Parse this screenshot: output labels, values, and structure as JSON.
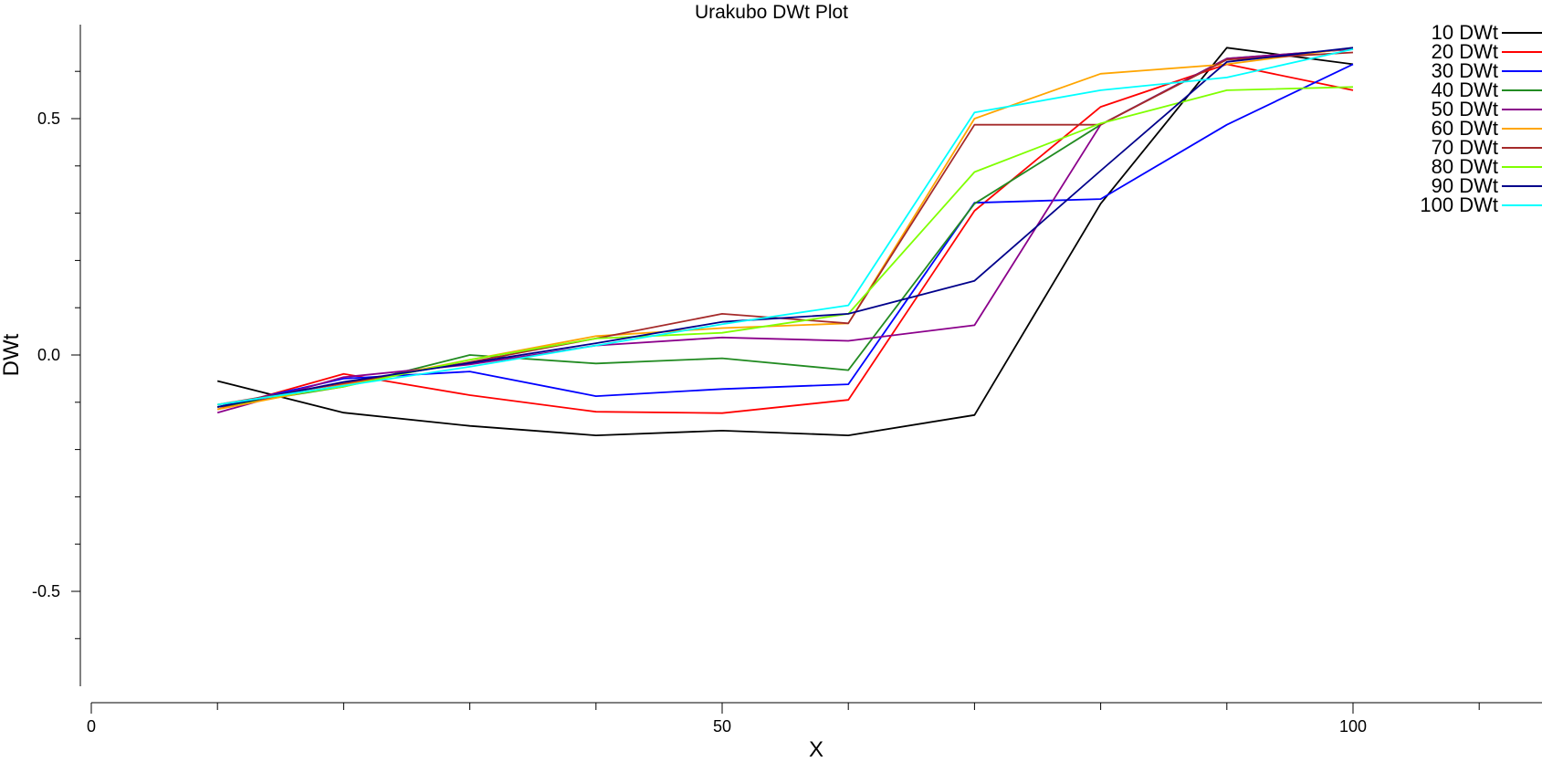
{
  "chart_data": {
    "type": "line",
    "title": "Urakubo DWt Plot",
    "xlabel": "X",
    "ylabel": "DWt",
    "xlim": [
      0,
      115
    ],
    "ylim": [
      -0.7,
      0.7
    ],
    "xticks": [
      {
        "value": 0,
        "label": "0"
      },
      {
        "value": 50,
        "label": "50"
      },
      {
        "value": 100,
        "label": "100"
      }
    ],
    "yticks": [
      {
        "value": 0.5,
        "label": "0.5"
      },
      {
        "value": 0,
        "label": "0.0"
      },
      {
        "value": -0.5,
        "label": "-0.5"
      }
    ],
    "legend_position": "top-right",
    "x": [
      10,
      20,
      30,
      40,
      50,
      60,
      70,
      80,
      90,
      100
    ],
    "series": [
      {
        "name": "10 DWt",
        "color": "#000000",
        "values": [
          -0.055,
          -0.122,
          -0.15,
          -0.17,
          -0.16,
          -0.17,
          -0.127,
          0.32,
          0.65,
          0.615
        ]
      },
      {
        "name": "20 DWt",
        "color": "#ff0000",
        "values": [
          -0.115,
          -0.04,
          -0.085,
          -0.12,
          -0.123,
          -0.095,
          0.305,
          0.525,
          0.615,
          0.56
        ]
      },
      {
        "name": "30 DWt",
        "color": "#0000ff",
        "values": [
          -0.11,
          -0.05,
          -0.035,
          -0.087,
          -0.072,
          -0.062,
          0.322,
          0.33,
          0.487,
          0.615
        ]
      },
      {
        "name": "40 DWt",
        "color": "#228b22",
        "values": [
          -0.11,
          -0.067,
          0.0,
          -0.018,
          -0.007,
          -0.032,
          0.32,
          0.487,
          0.627,
          0.647
        ]
      },
      {
        "name": "50 DWt",
        "color": "#8b008b",
        "values": [
          -0.122,
          -0.047,
          -0.02,
          0.02,
          0.037,
          0.03,
          0.063,
          0.487,
          0.627,
          0.647
        ]
      },
      {
        "name": "60 DWt",
        "color": "#ffa500",
        "values": [
          -0.115,
          -0.063,
          -0.01,
          0.04,
          0.057,
          0.067,
          0.5,
          0.595,
          0.615,
          0.65
        ]
      },
      {
        "name": "70 DWt",
        "color": "#a52a2a",
        "values": [
          -0.105,
          -0.06,
          -0.015,
          0.035,
          0.087,
          0.067,
          0.487,
          0.487,
          0.625,
          0.64
        ]
      },
      {
        "name": "80 DWt",
        "color": "#7fff00",
        "values": [
          -0.105,
          -0.067,
          -0.01,
          0.035,
          0.047,
          0.087,
          0.387,
          0.49,
          0.56,
          0.567
        ]
      },
      {
        "name": "90 DWt",
        "color": "#00008b",
        "values": [
          -0.11,
          -0.057,
          -0.017,
          0.025,
          0.07,
          0.087,
          0.157,
          0.39,
          0.62,
          0.65
        ]
      },
      {
        "name": "100 DWt",
        "color": "#00ffff",
        "values": [
          -0.105,
          -0.065,
          -0.025,
          0.02,
          0.065,
          0.105,
          0.513,
          0.56,
          0.587,
          0.647
        ]
      }
    ]
  }
}
